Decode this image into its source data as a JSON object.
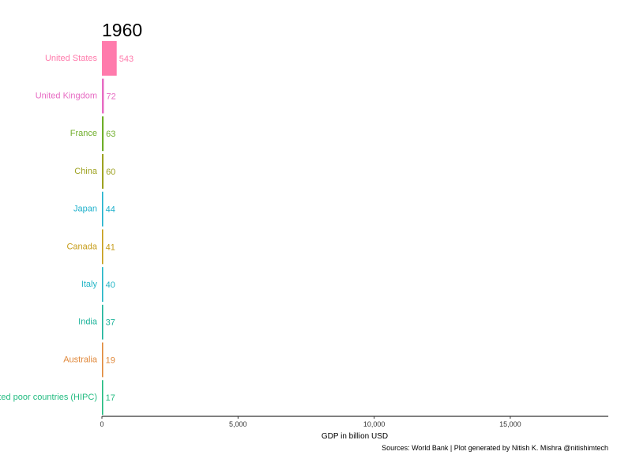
{
  "chart_data": {
    "type": "bar",
    "orientation": "horizontal",
    "title": "1960",
    "categories": [
      "United States",
      "United Kingdom",
      "France",
      "China",
      "Japan",
      "Canada",
      "Italy",
      "India",
      "Australia",
      "Heavily indebted poor countries (HIPC)"
    ],
    "values": [
      543,
      72,
      63,
      60,
      44,
      41,
      40,
      37,
      19,
      17
    ],
    "value_labels": [
      "543",
      "72",
      "63",
      "60",
      "44",
      "41",
      "40",
      "37",
      "19",
      "17"
    ],
    "colors": [
      "#FF7BAC",
      "#E76BC3",
      "#6FAE2A",
      "#9EA221",
      "#1FB1CC",
      "#C69C18",
      "#22B5C6",
      "#1CB39A",
      "#E0883A",
      "#22BB80"
    ],
    "xlabel": "GDP in billion USD",
    "ylabel": "",
    "xlim": [
      0,
      18600
    ],
    "x_ticks": [
      0,
      5000,
      10000,
      15000
    ],
    "x_tick_labels": [
      "0",
      "5,000",
      "10,000",
      "15,000"
    ],
    "grid": false,
    "legend": "none",
    "caption": "Sources: World Bank | Plot generated by Nitish K. Mishra @nitishimtech"
  }
}
